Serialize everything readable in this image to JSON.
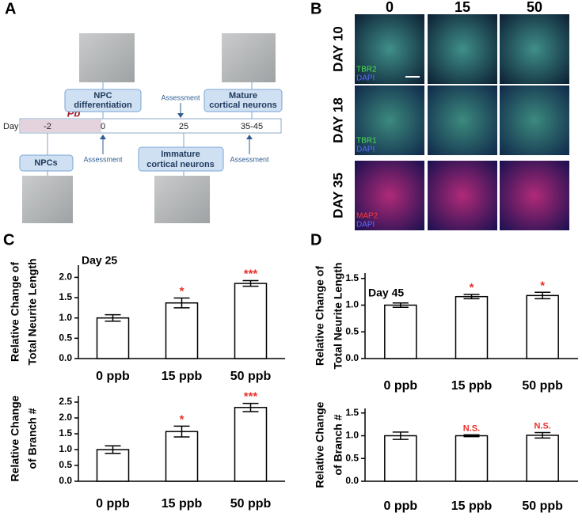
{
  "panel_labels": [
    "A",
    "B",
    "C",
    "D"
  ],
  "timeline": {
    "day_label": "Day",
    "days": [
      "-2",
      "0",
      "25",
      "35-45"
    ],
    "exposure": "Pb",
    "stages": {
      "npc_differentiation": [
        "NPC",
        "differentiation"
      ],
      "mature": [
        "Mature",
        "cortical neurons"
      ],
      "npcs": [
        "NPCs"
      ],
      "immature": [
        "Immature",
        "cortical neurons"
      ]
    },
    "assessments": [
      "Assessment",
      "Assessment",
      "Assessment"
    ]
  },
  "micrographs": {
    "columns": [
      "0",
      "15",
      "50"
    ],
    "rows": [
      "DAY 10",
      "DAY 18",
      "DAY 35"
    ],
    "markers": [
      [
        "TBR2",
        "DAPI"
      ],
      [
        "TBR1",
        "DAPI"
      ],
      [
        "MAP2",
        "DAPI"
      ]
    ]
  },
  "chart_data": [
    {
      "type": "bar",
      "title": "Day 25",
      "ylabel": [
        "Relative Change of",
        "Total Neurite Length"
      ],
      "categories": [
        "0 ppb",
        "15 ppb",
        "50 ppb"
      ],
      "values": [
        1.0,
        1.37,
        1.85
      ],
      "errors": [
        0.08,
        0.12,
        0.07
      ],
      "annotations": [
        null,
        "*",
        "***"
      ],
      "color": "#ffffff",
      "annotation_color": "#e8302a",
      "ylim": [
        0,
        2.3
      ],
      "yticks": [
        {
          "value": 0,
          "label": "0.0"
        },
        0.5,
        {
          "value": 1,
          "label": "1.0"
        },
        1.5,
        {
          "value": 2,
          "label": "2.0"
        }
      ]
    },
    {
      "type": "bar",
      "ylabel": [
        "Relative Change",
        "of Branch #"
      ],
      "categories": [
        "0 ppb",
        "15 ppb",
        "50 ppb"
      ],
      "values": [
        1.0,
        1.57,
        2.33
      ],
      "errors": [
        0.12,
        0.17,
        0.13
      ],
      "annotations": [
        null,
        "*",
        "***"
      ],
      "color": "#ffffff",
      "annotation_color": "#e8302a",
      "ylim": [
        0,
        2.7
      ],
      "yticks": [
        {
          "value": 0,
          "label": "0.0"
        },
        0.5,
        {
          "value": 1,
          "label": "1.0"
        },
        1.5,
        {
          "value": 2,
          "label": "2.0"
        },
        2.5
      ]
    },
    {
      "type": "bar",
      "title": "Day 45",
      "ylabel": [
        "Relative Change of",
        "Total Neurite Length"
      ],
      "categories": [
        "0 ppb",
        "15 ppb",
        "50 ppb"
      ],
      "values": [
        1.0,
        1.16,
        1.18
      ],
      "errors": [
        0.04,
        0.04,
        0.06
      ],
      "annotations": [
        null,
        "*",
        "*"
      ],
      "color": "#ffffff",
      "annotation_color": "#e8302a",
      "ylim": [
        0,
        1.6
      ],
      "yticks": [
        {
          "value": 0,
          "label": "0.0"
        },
        0.5,
        {
          "value": 1,
          "label": "1.0"
        },
        1.5
      ]
    },
    {
      "type": "bar",
      "ylabel": [
        "Relative Change",
        "of Branch #"
      ],
      "categories": [
        "0 ppb",
        "15 ppb",
        "50 ppb"
      ],
      "values": [
        1.0,
        1.0,
        1.01
      ],
      "errors": [
        0.08,
        0.02,
        0.06
      ],
      "annotations": [
        null,
        "N.S.",
        "N.S."
      ],
      "color": "#ffffff",
      "annotation_color": "#e8302a",
      "ylim": [
        0,
        1.6
      ],
      "yticks": [
        {
          "value": 0,
          "label": "0.0"
        },
        0.5,
        {
          "value": 1,
          "label": "1.0"
        },
        1.5
      ]
    }
  ]
}
